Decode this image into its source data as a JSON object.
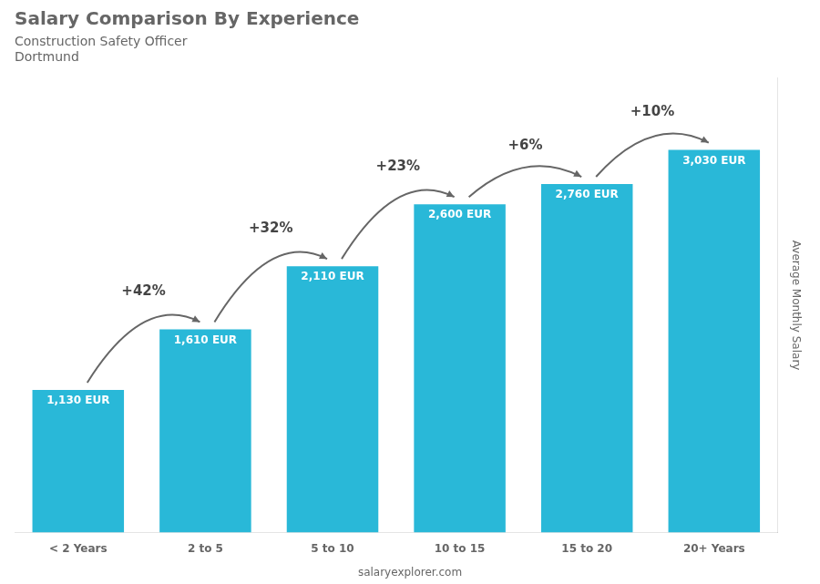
{
  "chart_data": {
    "type": "bar",
    "title": "Salary Comparison By Experience",
    "subtitle": [
      "Construction Safety Officer",
      "Dortmund"
    ],
    "categories": [
      "< 2 Years",
      "2 to 5",
      "5 to 10",
      "10 to 15",
      "15 to 20",
      "20+ Years"
    ],
    "values": [
      1130,
      1610,
      2110,
      2600,
      2760,
      3030
    ],
    "value_labels": [
      "1,130 EUR",
      "1,610 EUR",
      "2,110 EUR",
      "2,600 EUR",
      "2,760 EUR",
      "3,030 EUR"
    ],
    "data_labels": true,
    "color": "#29b8d8",
    "ylabel": "Average Monthly Salary",
    "ylim": [
      0,
      3600
    ],
    "tick_labels": "x",
    "grid": false,
    "annotations": [
      {
        "text": "+42%",
        "from": "< 2 Years",
        "to": "2 to 5"
      },
      {
        "text": "+32%",
        "from": "2 to 5",
        "to": "5 to 10"
      },
      {
        "text": "+23%",
        "from": "5 to 10",
        "to": "10 to 15"
      },
      {
        "text": "+6%",
        "from": "10 to 15",
        "to": "15 to 20"
      },
      {
        "text": "+10%",
        "from": "15 to 20",
        "to": "20+ Years"
      }
    ],
    "source": "salaryexplorer.com"
  }
}
